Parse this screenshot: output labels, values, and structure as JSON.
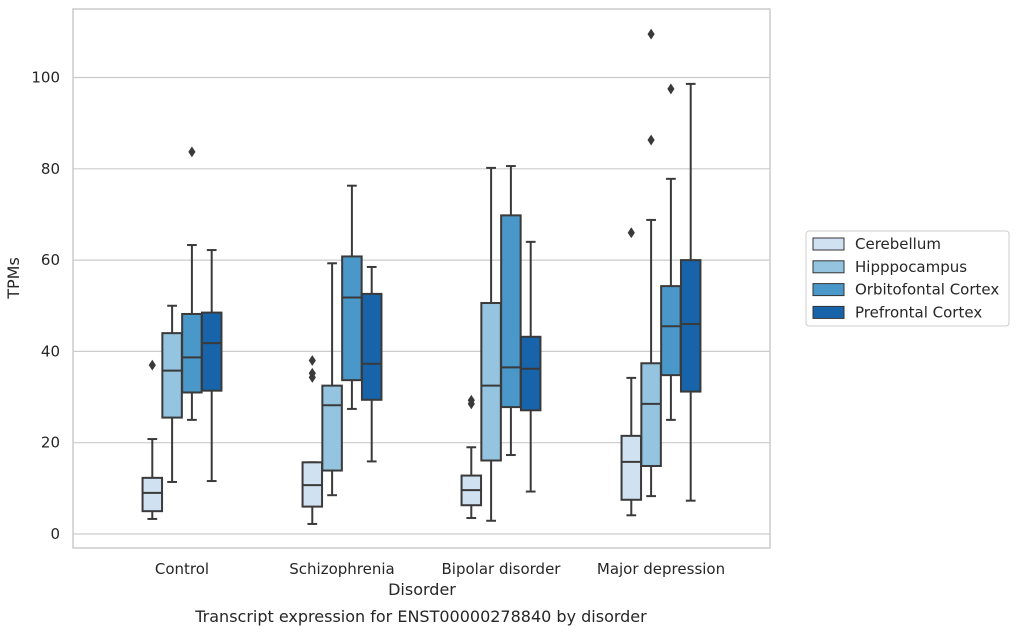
{
  "chart_data": {
    "type": "box",
    "caption": "Transcript expression for ENST00000278840 by disorder",
    "xlabel": "Disorder",
    "ylabel": "TPMs",
    "ylim": [
      -3,
      116
    ],
    "yticks": [
      0,
      20,
      40,
      60,
      80,
      100
    ],
    "grid": "horizontal",
    "legend_position": "right",
    "categories": [
      "Control",
      "Schizophrenia",
      "Bipolar disorder",
      "Major depression"
    ],
    "series": [
      {
        "name": "Cerebellum",
        "color": "#d0e1f2",
        "boxes": [
          {
            "whislo": 3.3,
            "q1": 5.0,
            "med": 9.0,
            "q3": 12.3,
            "whishi": 20.8,
            "fliers": [
              37.0
            ]
          },
          {
            "whislo": 2.2,
            "q1": 6.0,
            "med": 10.7,
            "q3": 15.7,
            "whishi": 15.7,
            "fliers": [
              38.0,
              35.2,
              34.3
            ]
          },
          {
            "whislo": 3.5,
            "q1": 6.3,
            "med": 9.6,
            "q3": 12.8,
            "whishi": 19.0,
            "fliers": [
              29.3,
              28.5
            ]
          },
          {
            "whislo": 4.1,
            "q1": 7.5,
            "med": 15.8,
            "q3": 21.5,
            "whishi": 34.2,
            "fliers": [
              66.0
            ]
          }
        ]
      },
      {
        "name": "Hipppocampus",
        "color": "#94c4df",
        "boxes": [
          {
            "whislo": 11.4,
            "q1": 25.5,
            "med": 35.8,
            "q3": 44.0,
            "whishi": 50.0,
            "fliers": []
          },
          {
            "whislo": 8.5,
            "q1": 13.9,
            "med": 28.2,
            "q3": 32.5,
            "whishi": 59.3,
            "fliers": []
          },
          {
            "whislo": 2.9,
            "q1": 16.1,
            "med": 32.5,
            "q3": 50.6,
            "whishi": 80.2,
            "fliers": []
          },
          {
            "whislo": 8.3,
            "q1": 14.9,
            "med": 28.5,
            "q3": 37.4,
            "whishi": 68.8,
            "fliers": [
              109.5,
              86.3
            ]
          }
        ]
      },
      {
        "name": "Orbitofontal Cortex",
        "color": "#4a98c9",
        "boxes": [
          {
            "whislo": 25.0,
            "q1": 31.0,
            "med": 38.7,
            "q3": 48.2,
            "whishi": 63.3,
            "fliers": [
              83.7
            ]
          },
          {
            "whislo": 27.4,
            "q1": 33.7,
            "med": 51.8,
            "q3": 60.8,
            "whishi": 76.3,
            "fliers": []
          },
          {
            "whislo": 17.3,
            "q1": 27.8,
            "med": 36.5,
            "q3": 69.8,
            "whishi": 80.6,
            "fliers": []
          },
          {
            "whislo": 25.0,
            "q1": 34.8,
            "med": 45.5,
            "q3": 54.3,
            "whishi": 77.8,
            "fliers": [
              97.5
            ]
          }
        ]
      },
      {
        "name": "Prefrontal Cortex",
        "color": "#1764ab",
        "boxes": [
          {
            "whislo": 11.6,
            "q1": 31.4,
            "med": 41.8,
            "q3": 48.5,
            "whishi": 62.2,
            "fliers": []
          },
          {
            "whislo": 15.9,
            "q1": 29.4,
            "med": 37.3,
            "q3": 52.6,
            "whishi": 58.5,
            "fliers": []
          },
          {
            "whislo": 9.3,
            "q1": 27.1,
            "med": 36.2,
            "q3": 43.2,
            "whishi": 64.0,
            "fliers": []
          },
          {
            "whislo": 7.3,
            "q1": 31.2,
            "med": 46.0,
            "q3": 60.0,
            "whishi": 98.6,
            "fliers": []
          }
        ]
      }
    ]
  }
}
